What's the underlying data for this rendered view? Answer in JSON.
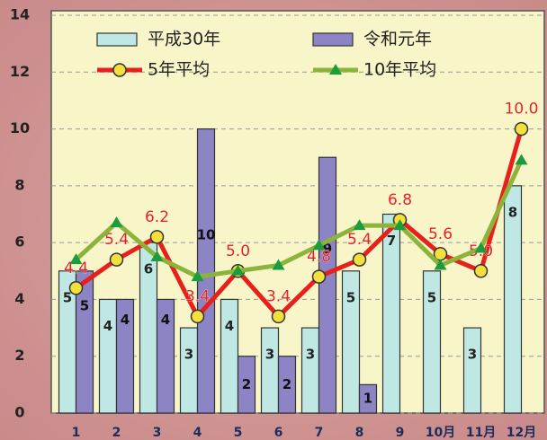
{
  "chart_data": {
    "type": "bar_line",
    "categories": [
      "1",
      "2",
      "3",
      "4",
      "5",
      "6",
      "7",
      "8",
      "9",
      "10月",
      "11月",
      "12月"
    ],
    "series": [
      {
        "name": "平成30年",
        "kind": "bar",
        "color": "#bfe8e4",
        "values": [
          5,
          4,
          6,
          3,
          4,
          3,
          3,
          5,
          7,
          5,
          3,
          8
        ]
      },
      {
        "name": "令和元年",
        "kind": "bar",
        "color": "#8c84c4",
        "values": [
          5,
          4,
          4,
          10,
          2,
          2,
          9,
          1,
          null,
          null,
          null,
          null
        ]
      },
      {
        "name": "5年平均",
        "kind": "line",
        "color": "#e8201c",
        "marker_color": "#f4e03c",
        "values": [
          4.4,
          5.4,
          6.2,
          3.4,
          5.0,
          3.4,
          4.8,
          5.4,
          6.8,
          5.6,
          5.0,
          10.0
        ],
        "value_labels": [
          "4.4",
          "5.4",
          "6.2",
          "3.4",
          "5.0",
          "3.4",
          "4.8",
          "5.4",
          "6.8",
          "5.6",
          "5.0",
          "10.0"
        ]
      },
      {
        "name": "10年平均",
        "kind": "line",
        "color": "#8cb43c",
        "marker_color": "#1c9c3c",
        "values": [
          5.4,
          6.7,
          5.5,
          4.8,
          5.0,
          5.2,
          5.9,
          6.6,
          6.6,
          5.2,
          5.8,
          8.9
        ]
      }
    ],
    "ylim": [
      0,
      14
    ],
    "yticks": [
      0,
      2,
      4,
      6,
      8,
      10,
      12,
      14
    ],
    "grid": true
  }
}
